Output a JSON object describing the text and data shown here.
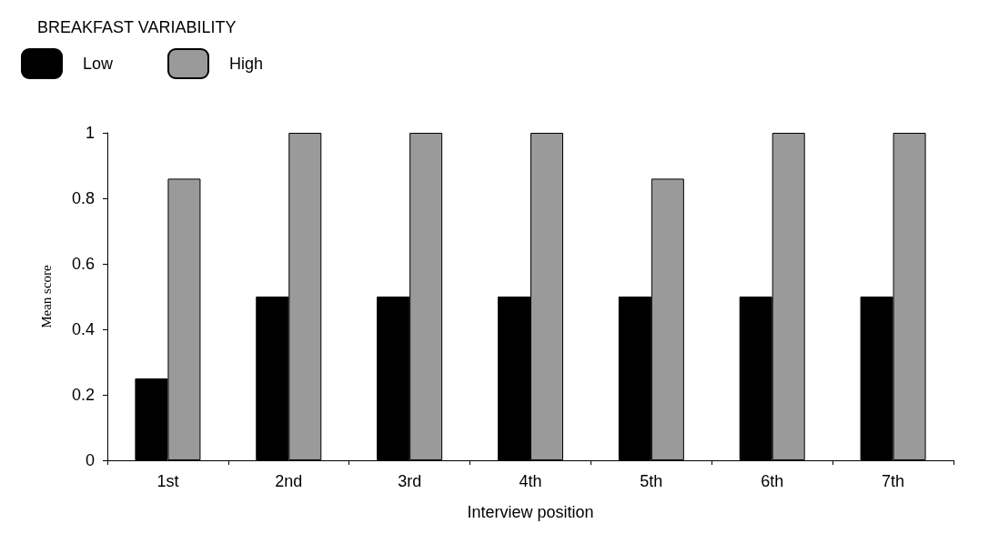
{
  "chart_data": {
    "type": "bar",
    "legend_title": "BREAKFAST VARIABILITY",
    "xlabel": "Interview position",
    "ylabel": "Mean score",
    "categories": [
      "1st",
      "2nd",
      "3rd",
      "4th",
      "5th",
      "6th",
      "7th"
    ],
    "series": [
      {
        "name": "Low",
        "color": "#000000",
        "values": [
          0.25,
          0.5,
          0.5,
          0.5,
          0.5,
          0.5,
          0.5
        ]
      },
      {
        "name": "High",
        "color": "#9a9a9a",
        "values": [
          0.86,
          1,
          1,
          1,
          0.86,
          1,
          1
        ]
      }
    ],
    "ylim": [
      0,
      1
    ],
    "yticks": [
      0,
      0.2,
      0.4,
      0.6,
      0.8,
      1
    ],
    "grid": false,
    "legend": "top left"
  }
}
